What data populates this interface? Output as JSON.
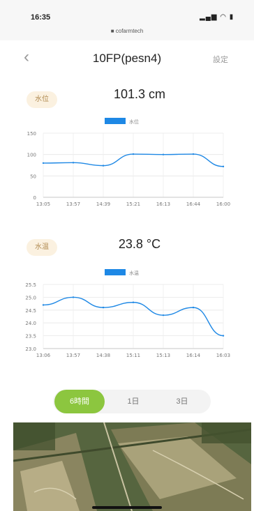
{
  "status_bar": {
    "time": "16:35",
    "signal": "…•▌",
    "url": "■ cofarmtech"
  },
  "nav": {
    "back": "‹",
    "title": "10FP(pesn4)",
    "settings": "設定"
  },
  "water_level": {
    "label": "水位",
    "reading": "101.3 cm",
    "chart_data": {
      "type": "line",
      "legend": "水位",
      "categories": [
        "13:05",
        "13:57",
        "14:39",
        "15:21",
        "16:13",
        "16:44",
        "16:00"
      ],
      "values": [
        80,
        81,
        74,
        101,
        100,
        101,
        72
      ],
      "yticks": [
        "150",
        "100",
        "50",
        "0"
      ],
      "ylim": [
        0,
        150
      ],
      "color": "#1e88e5"
    }
  },
  "water_temp": {
    "label": "水温",
    "reading": "23.8 °C",
    "chart_data": {
      "type": "line",
      "legend": "水温",
      "categories": [
        "13:06",
        "13:57",
        "14:38",
        "15:11",
        "15:13",
        "16:14",
        "16:03"
      ],
      "values": [
        24.7,
        25.0,
        24.6,
        24.8,
        24.3,
        24.6,
        23.5
      ],
      "yticks": [
        "25.5",
        "25.0",
        "24.5",
        "24.0",
        "23.5",
        "23.0"
      ],
      "ylim": [
        23.0,
        25.5
      ],
      "color": "#1e88e5"
    }
  },
  "range_selector": {
    "options": [
      "6時間",
      "1日",
      "3日"
    ],
    "selected": "6時間"
  }
}
